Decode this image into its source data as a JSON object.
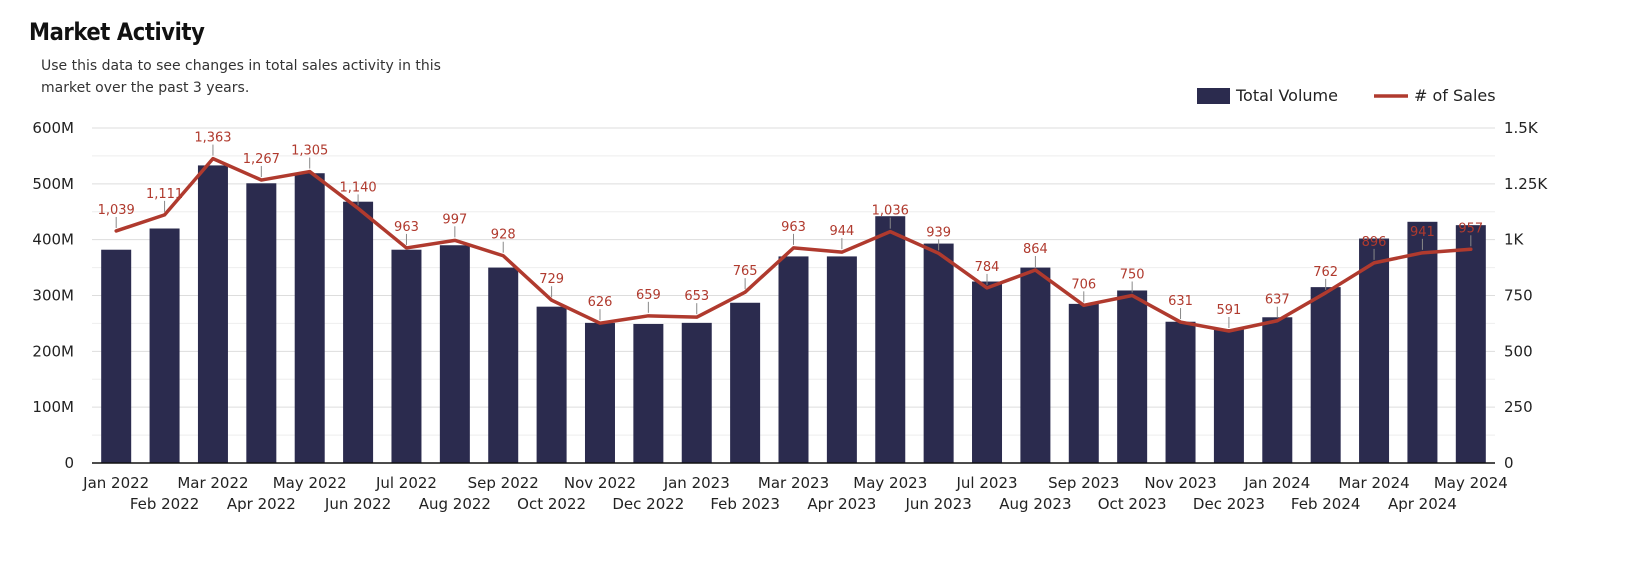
{
  "header": {
    "title": "Market Activity",
    "subtitle": "Use this data to see changes in total sales activity in this market over the past 3 years."
  },
  "colors": {
    "bar": "#2b2b4e",
    "line": "#b03a2e",
    "grid": "#dddddd",
    "leader": "#888888"
  },
  "chart_data": {
    "type": "bar",
    "categories": [
      "Jan 2022",
      "Feb 2022",
      "Mar 2022",
      "Apr 2022",
      "May 2022",
      "Jun 2022",
      "Jul 2022",
      "Aug 2022",
      "Sep 2022",
      "Oct 2022",
      "Nov 2022",
      "Dec 2022",
      "Jan 2023",
      "Feb 2023",
      "Mar 2023",
      "Apr 2023",
      "May 2023",
      "Jun 2023",
      "Jul 2023",
      "Aug 2023",
      "Sep 2023",
      "Oct 2023",
      "Nov 2023",
      "Dec 2023",
      "Jan 2024",
      "Feb 2024",
      "Mar 2024",
      "Apr 2024",
      "May 2024"
    ],
    "series": [
      {
        "name": "Total Volume",
        "type": "bar",
        "axis": "left",
        "values": [
          382,
          420,
          533,
          501,
          519,
          468,
          382,
          390,
          350,
          280,
          251,
          249,
          251,
          287,
          370,
          370,
          442,
          393,
          325,
          350,
          285,
          309,
          253,
          240,
          261,
          315,
          402,
          432,
          426
        ],
        "unit": "M"
      },
      {
        "name": "# of Sales",
        "type": "line",
        "axis": "right",
        "values": [
          1039,
          1111,
          1363,
          1267,
          1305,
          1140,
          963,
          997,
          928,
          729,
          626,
          659,
          653,
          765,
          963,
          944,
          1036,
          939,
          784,
          864,
          706,
          750,
          631,
          591,
          637,
          762,
          896,
          941,
          957
        ],
        "data_labels": [
          "1,039",
          "1,111",
          "1,363",
          "1,267",
          "1,305",
          "1,140",
          "963",
          "997",
          "928",
          "729",
          "626",
          "659",
          "653",
          "765",
          "963",
          "944",
          "1,036",
          "939",
          "784",
          "864",
          "706",
          "750",
          "631",
          "591",
          "637",
          "762",
          "896",
          "941",
          "957"
        ]
      }
    ],
    "y_left": {
      "ylim": [
        0,
        600
      ],
      "ticks": [
        0,
        100,
        200,
        300,
        400,
        500,
        600
      ],
      "tick_labels": [
        "0",
        "100M",
        "200M",
        "300M",
        "400M",
        "500M",
        "600M"
      ]
    },
    "y_right": {
      "ylim": [
        0,
        1500
      ],
      "ticks": [
        0,
        250,
        500,
        750,
        1000,
        1250,
        1500
      ],
      "tick_labels": [
        "0",
        "250",
        "500",
        "750",
        "1K",
        "1.25K",
        "1.5K"
      ]
    },
    "grid": true,
    "legend": {
      "placement": "top-right",
      "entries": [
        "Total Volume",
        "# of Sales"
      ]
    }
  }
}
